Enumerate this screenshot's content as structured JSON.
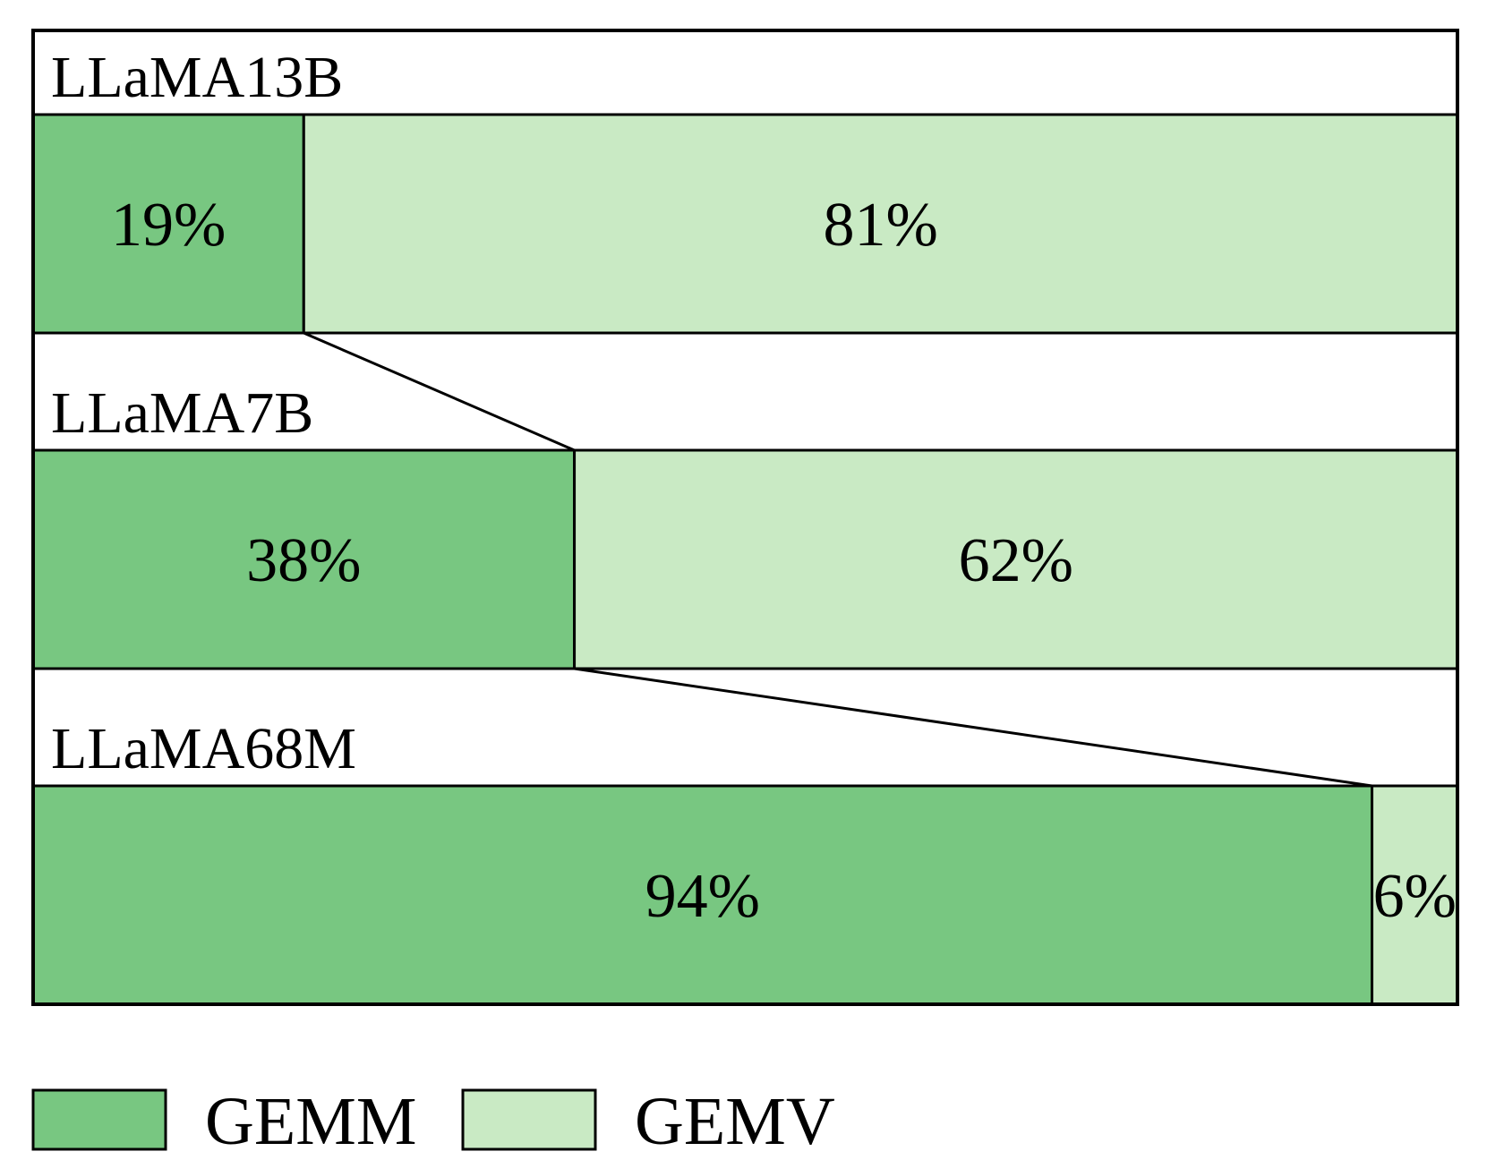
{
  "colors": {
    "gemm": "#78c781",
    "gemv": "#c9eac4",
    "stroke": "#000000",
    "background": "#ffffff"
  },
  "chart_data": {
    "type": "bar",
    "orientation": "horizontal",
    "stacked": true,
    "normalized_percent": true,
    "categories": [
      "LLaMA13B",
      "LLaMA7B",
      "LLaMA68M"
    ],
    "series": [
      {
        "name": "GEMM",
        "values": [
          19,
          38,
          94
        ],
        "labels": [
          "19%",
          "38%",
          "94%"
        ]
      },
      {
        "name": "GEMV",
        "values": [
          81,
          62,
          6
        ],
        "labels": [
          "81%",
          "62%",
          "6%"
        ]
      }
    ],
    "xlim": [
      0,
      100
    ],
    "grid": false,
    "legend_placement": "bottom-left",
    "connectors": "lines link the GEMM/GEMV boundary of each bar to the boundary of the next bar"
  },
  "legend": {
    "items": [
      {
        "label": "GEMM",
        "color_key": "gemm"
      },
      {
        "label": "GEMV",
        "color_key": "gemv"
      }
    ]
  }
}
